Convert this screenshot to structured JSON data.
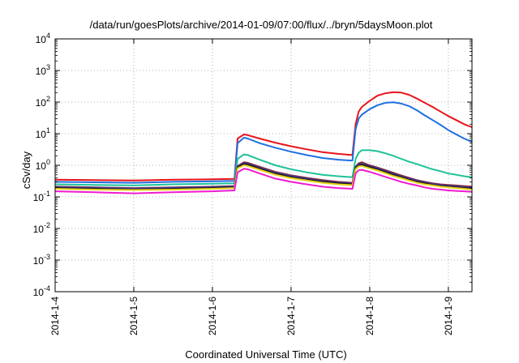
{
  "chart_data": {
    "type": "line",
    "title": "/data/run/goesPlots/archive/2014-01-09/07:00/flux/../bryn/5daysMoon.plot",
    "xlabel": "Coordinated Universal Time (UTC)",
    "ylabel": "cSv/day",
    "yscale": "log",
    "ylim": [
      0.0001,
      10000
    ],
    "xlim": [
      0,
      5.3
    ],
    "grid": true,
    "legend": "none",
    "x_tick_labels": [
      "2014-1-4",
      "2014-1-5",
      "2014-1-6",
      "2014-1-7",
      "2014-1-8",
      "2014-1-9"
    ],
    "x_tick_values": [
      0,
      1,
      2,
      3,
      4,
      5
    ],
    "y_ticks": [
      {
        "base": "10",
        "exp": "4",
        "value": 10000
      },
      {
        "base": "10",
        "exp": "3",
        "value": 1000
      },
      {
        "base": "10",
        "exp": "2",
        "value": 100
      },
      {
        "base": "10",
        "exp": "1",
        "value": 10
      },
      {
        "base": "10",
        "exp": "0",
        "value": 1
      },
      {
        "base": "10",
        "exp": "-1",
        "value": 0.1
      },
      {
        "base": "10",
        "exp": "-2",
        "value": 0.01
      },
      {
        "base": "10",
        "exp": "-3",
        "value": 0.001
      },
      {
        "base": "10",
        "exp": "-4",
        "value": 0.0001
      }
    ],
    "x_unit": "days since 2014-1-4 00:00 UTC",
    "series": [
      {
        "color": "#e8141b",
        "x": [
          0,
          0.5,
          1,
          1.5,
          2,
          2.28,
          2.32,
          2.4,
          2.45,
          2.6,
          2.8,
          3,
          3.2,
          3.4,
          3.6,
          3.78,
          3.82,
          3.86,
          3.9,
          4,
          4.1,
          4.2,
          4.3,
          4.4,
          4.5,
          4.6,
          4.7,
          4.8,
          4.9,
          5,
          5.1,
          5.2,
          5.3
        ],
        "y": [
          0.35,
          0.34,
          0.33,
          0.35,
          0.36,
          0.37,
          7,
          9.5,
          9,
          7,
          5.2,
          4,
          3.2,
          2.6,
          2.3,
          2.1,
          20,
          50,
          70,
          110,
          160,
          190,
          205,
          200,
          170,
          130,
          95,
          70,
          50,
          36,
          27,
          20,
          16
        ]
      },
      {
        "color": "#1f6fe0",
        "x": [
          0,
          0.5,
          1,
          1.5,
          2,
          2.28,
          2.32,
          2.4,
          2.45,
          2.6,
          2.8,
          3,
          3.2,
          3.4,
          3.6,
          3.78,
          3.82,
          3.86,
          3.9,
          4,
          4.1,
          4.2,
          4.3,
          4.4,
          4.5,
          4.6,
          4.7,
          4.8,
          4.9,
          5,
          5.1,
          5.2,
          5.3
        ],
        "y": [
          0.3,
          0.29,
          0.28,
          0.3,
          0.31,
          0.32,
          5,
          7.5,
          7,
          5,
          3.6,
          2.7,
          2.1,
          1.7,
          1.5,
          1.4,
          14,
          30,
          40,
          60,
          80,
          95,
          98,
          90,
          75,
          55,
          38,
          27,
          19,
          13,
          9.5,
          7,
          5.5
        ]
      },
      {
        "color": "#1ec29a",
        "x": [
          0,
          0.5,
          1,
          1.5,
          2,
          2.28,
          2.32,
          2.4,
          2.45,
          2.6,
          2.8,
          3,
          3.2,
          3.4,
          3.6,
          3.78,
          3.82,
          3.86,
          3.9,
          4,
          4.1,
          4.2,
          4.3,
          4.4,
          4.5,
          4.6,
          4.7,
          4.8,
          4.9,
          5,
          5.1,
          5.2,
          5.3
        ],
        "y": [
          0.25,
          0.24,
          0.23,
          0.25,
          0.26,
          0.27,
          1.6,
          2.2,
          2.1,
          1.5,
          1.0,
          0.75,
          0.6,
          0.5,
          0.45,
          0.42,
          1.6,
          2.5,
          3,
          3,
          2.8,
          2.4,
          2.0,
          1.6,
          1.3,
          1.1,
          0.9,
          0.75,
          0.65,
          0.55,
          0.5,
          0.45,
          0.42
        ]
      },
      {
        "color": "#7a2c4a",
        "x": [
          0,
          0.5,
          1,
          1.5,
          2,
          2.28,
          2.32,
          2.4,
          2.45,
          2.6,
          2.8,
          3,
          3.2,
          3.4,
          3.6,
          3.78,
          3.82,
          3.86,
          3.9,
          4,
          4.1,
          4.2,
          4.3,
          4.4,
          4.5,
          4.6,
          4.7,
          4.8,
          4.9,
          5,
          5.1,
          5.2,
          5.3
        ],
        "y": [
          0.21,
          0.2,
          0.19,
          0.2,
          0.21,
          0.22,
          0.95,
          1.25,
          1.2,
          0.9,
          0.62,
          0.48,
          0.4,
          0.34,
          0.3,
          0.28,
          0.9,
          1.15,
          1.25,
          1.0,
          0.85,
          0.7,
          0.58,
          0.48,
          0.4,
          0.34,
          0.3,
          0.27,
          0.25,
          0.24,
          0.23,
          0.22,
          0.21
        ]
      },
      {
        "color": "#3a3aa8",
        "x": [
          0,
          0.5,
          1,
          1.5,
          2,
          2.28,
          2.32,
          2.4,
          2.45,
          2.6,
          2.8,
          3,
          3.2,
          3.4,
          3.6,
          3.78,
          3.82,
          3.86,
          3.9,
          4,
          4.1,
          4.2,
          4.3,
          4.4,
          4.5,
          4.6,
          4.7,
          4.8,
          4.9,
          5,
          5.1,
          5.2,
          5.3
        ],
        "y": [
          0.2,
          0.19,
          0.18,
          0.19,
          0.2,
          0.21,
          0.9,
          1.15,
          1.1,
          0.82,
          0.57,
          0.44,
          0.37,
          0.31,
          0.28,
          0.26,
          0.85,
          1.05,
          1.1,
          0.92,
          0.78,
          0.64,
          0.53,
          0.44,
          0.37,
          0.32,
          0.28,
          0.25,
          0.23,
          0.22,
          0.21,
          0.2,
          0.19
        ]
      },
      {
        "color": "#1a1a1a",
        "x": [
          0,
          0.5,
          1,
          1.5,
          2,
          2.28,
          2.32,
          2.4,
          2.45,
          2.6,
          2.8,
          3,
          3.2,
          3.4,
          3.6,
          3.78,
          3.82,
          3.86,
          3.9,
          4,
          4.1,
          4.2,
          4.3,
          4.4,
          4.5,
          4.6,
          4.7,
          4.8,
          4.9,
          5,
          5.1,
          5.2,
          5.3
        ],
        "y": [
          0.19,
          0.18,
          0.17,
          0.18,
          0.19,
          0.2,
          0.85,
          1.1,
          1.05,
          0.78,
          0.54,
          0.42,
          0.35,
          0.3,
          0.27,
          0.25,
          0.8,
          1.0,
          1.05,
          0.88,
          0.74,
          0.61,
          0.5,
          0.42,
          0.35,
          0.3,
          0.27,
          0.24,
          0.22,
          0.21,
          0.2,
          0.19,
          0.18
        ]
      },
      {
        "color": "#e6d21a",
        "x": [
          0,
          0.5,
          1,
          1.5,
          2,
          2.28,
          2.32,
          2.4,
          2.45,
          2.6,
          2.8,
          3,
          3.2,
          3.4,
          3.6,
          3.78,
          3.82,
          3.86,
          3.9,
          4,
          4.1,
          4.2,
          4.3,
          4.4,
          4.5,
          4.6,
          4.7,
          4.8,
          4.9,
          5,
          5.1,
          5.2,
          5.3
        ],
        "y": [
          0.18,
          0.17,
          0.165,
          0.17,
          0.18,
          0.19,
          0.8,
          1.0,
          0.95,
          0.72,
          0.5,
          0.39,
          0.33,
          0.28,
          0.25,
          0.235,
          0.75,
          0.92,
          0.95,
          0.8,
          0.68,
          0.56,
          0.46,
          0.39,
          0.33,
          0.28,
          0.25,
          0.23,
          0.21,
          0.2,
          0.19,
          0.18,
          0.17
        ]
      },
      {
        "color": "#f01ad0",
        "x": [
          0,
          0.5,
          1,
          1.5,
          2,
          2.28,
          2.32,
          2.4,
          2.45,
          2.6,
          2.8,
          3,
          3.2,
          3.4,
          3.6,
          3.78,
          3.82,
          3.86,
          3.9,
          4,
          4.1,
          4.2,
          4.3,
          4.4,
          4.5,
          4.6,
          4.7,
          4.8,
          4.9,
          5,
          5.1,
          5.2,
          5.3
        ],
        "y": [
          0.15,
          0.14,
          0.13,
          0.14,
          0.15,
          0.16,
          0.6,
          0.78,
          0.75,
          0.55,
          0.38,
          0.3,
          0.25,
          0.21,
          0.19,
          0.18,
          0.55,
          0.7,
          0.72,
          0.62,
          0.52,
          0.43,
          0.36,
          0.3,
          0.26,
          0.23,
          0.2,
          0.18,
          0.17,
          0.16,
          0.155,
          0.15,
          0.145
        ]
      }
    ]
  }
}
